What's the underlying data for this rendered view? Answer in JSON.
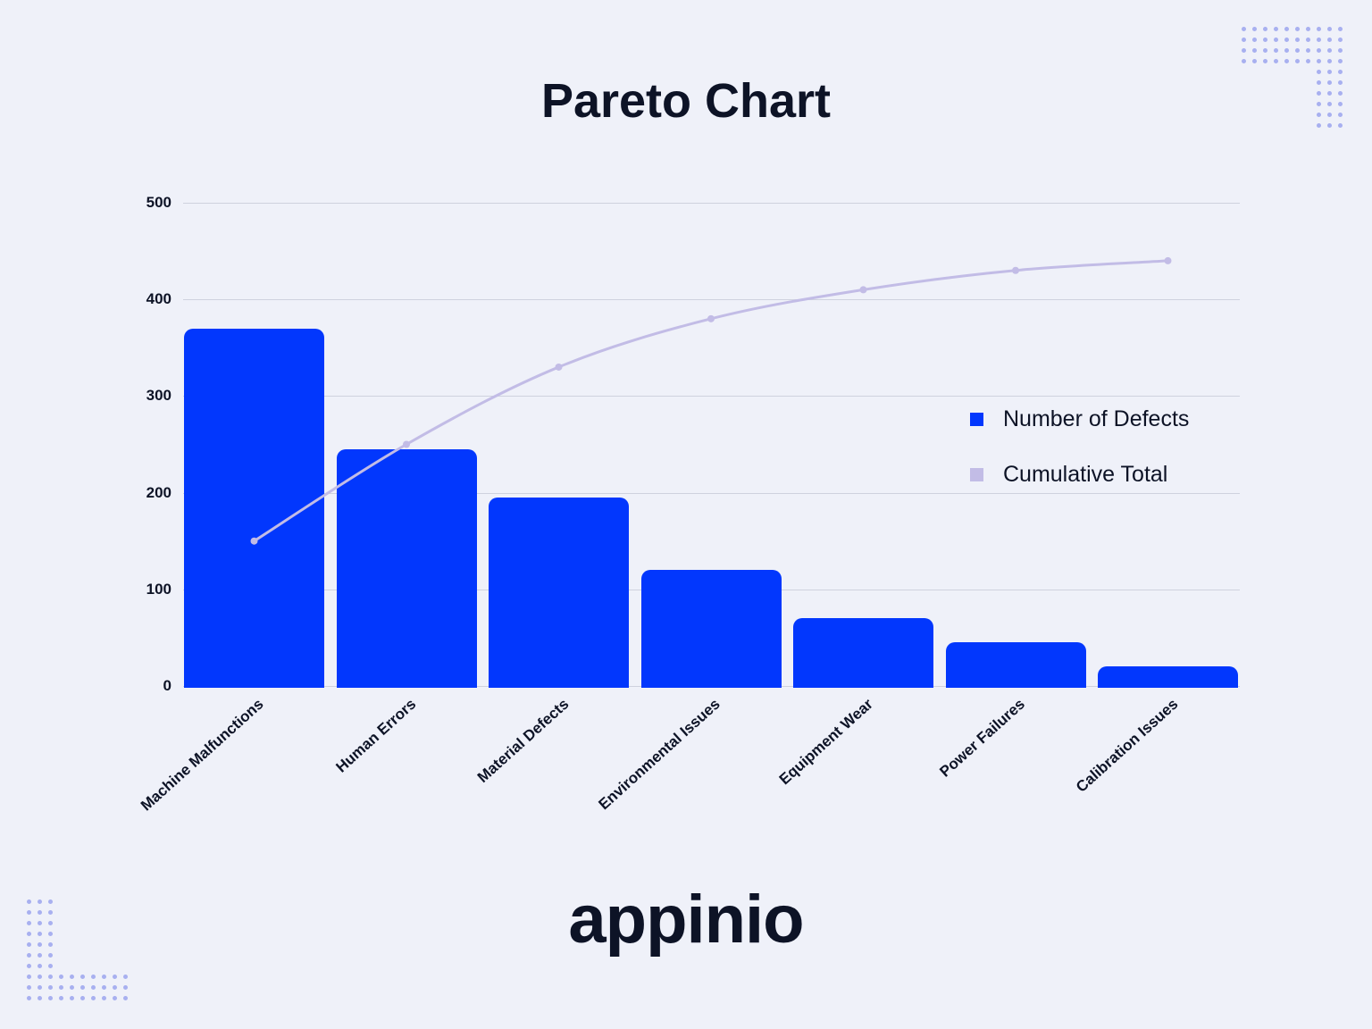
{
  "title": "Pareto Chart",
  "logo": "appinio",
  "colors": {
    "bar": "#0237fd",
    "line": "#c2bce6",
    "background": "#eff1f9"
  },
  "legend": [
    {
      "label": "Number of Defects",
      "color": "#0237fd"
    },
    {
      "label": "Cumulative Total",
      "color": "#c2bce6"
    }
  ],
  "y_ticks": [
    "0",
    "100",
    "200",
    "300",
    "400",
    "500"
  ],
  "chart_data": {
    "type": "bar",
    "title": "Pareto Chart",
    "categories": [
      "Machine Malfunctions",
      "Human Errors",
      "Material Defects",
      "Environmental Issues",
      "Equipment Wear",
      "Power Failures",
      "Calibration Issues"
    ],
    "series": [
      {
        "name": "Number of Defects",
        "type": "bar",
        "values": [
          370,
          245,
          195,
          120,
          70,
          45,
          20
        ]
      },
      {
        "name": "Cumulative Total",
        "type": "line",
        "values": [
          150,
          250,
          330,
          380,
          410,
          430,
          440
        ]
      }
    ],
    "xlabel": "",
    "ylabel": "",
    "ylim": [
      0,
      500
    ],
    "grid": true,
    "legend_position": "right"
  }
}
